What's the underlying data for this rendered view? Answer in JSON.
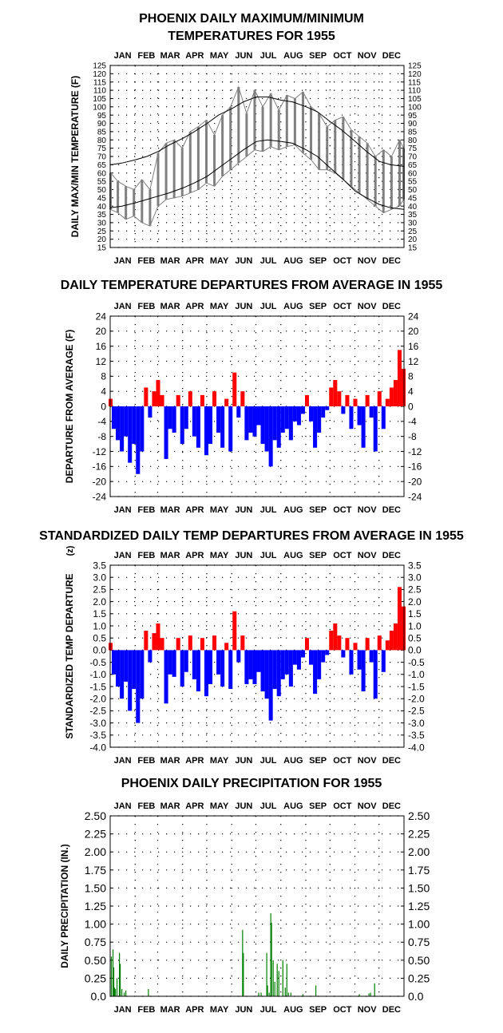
{
  "chart_data": [
    {
      "type": "line",
      "title_lines": [
        "PHOENIX DAILY MAXIMUM/MINIMUM",
        "TEMPERATURES FOR 1955"
      ],
      "ylabel": "DAILY MAX/MIN TEMPERATURE (F)",
      "xlabel": "",
      "months": [
        "JAN",
        "FEB",
        "MAR",
        "APR",
        "MAY",
        "JUN",
        "JUL",
        "AUG",
        "SEP",
        "OCT",
        "NOV",
        "DEC"
      ],
      "ylim": [
        15,
        125
      ],
      "yticks": [
        15,
        20,
        25,
        30,
        35,
        40,
        45,
        50,
        55,
        60,
        65,
        70,
        75,
        80,
        85,
        90,
        95,
        100,
        105,
        110,
        115,
        120,
        125
      ],
      "grid": true,
      "colors": {
        "observed_band": "#808080",
        "normal_lines": "#000000"
      },
      "series": [
        {
          "name": "",
          "role": "normal_max",
          "x": [
            1,
            15,
            32,
            46,
            60,
            74,
            91,
            105,
            121,
            135,
            152,
            166,
            182,
            196,
            213,
            227,
            244,
            258,
            274,
            288,
            305,
            319,
            335,
            349,
            365
          ],
          "values": [
            65,
            66,
            68,
            70,
            73,
            77,
            81,
            85,
            90,
            95,
            99,
            103,
            106,
            106,
            104,
            103,
            100,
            97,
            91,
            86,
            79,
            73,
            67,
            65,
            64
          ]
        },
        {
          "name": "",
          "role": "normal_min",
          "x": [
            1,
            15,
            32,
            46,
            60,
            74,
            91,
            105,
            121,
            135,
            152,
            166,
            182,
            196,
            213,
            227,
            244,
            258,
            274,
            288,
            305,
            319,
            335,
            349,
            365
          ],
          "values": [
            39,
            40,
            42,
            44,
            46,
            48,
            51,
            54,
            58,
            63,
            69,
            74,
            79,
            80,
            79,
            78,
            74,
            70,
            63,
            57,
            49,
            45,
            41,
            39,
            38
          ]
        },
        {
          "name": "",
          "role": "observed_max",
          "x": [
            1,
            10,
            20,
            30,
            40,
            50,
            60,
            70,
            80,
            90,
            100,
            110,
            120,
            130,
            140,
            150,
            160,
            170,
            180,
            190,
            200,
            210,
            220,
            230,
            240,
            250,
            260,
            270,
            280,
            290,
            300,
            310,
            320,
            330,
            340,
            350,
            360,
            365
          ],
          "values": [
            60,
            55,
            52,
            50,
            56,
            50,
            72,
            78,
            80,
            75,
            85,
            88,
            92,
            83,
            95,
            100,
            112,
            96,
            110,
            100,
            108,
            98,
            107,
            105,
            109,
            100,
            96,
            88,
            92,
            94,
            86,
            82,
            78,
            70,
            74,
            70,
            80,
            75
          ]
        },
        {
          "name": "",
          "role": "observed_min",
          "x": [
            1,
            10,
            20,
            30,
            40,
            50,
            60,
            70,
            80,
            90,
            100,
            110,
            120,
            130,
            140,
            150,
            160,
            170,
            180,
            190,
            200,
            210,
            220,
            230,
            240,
            250,
            260,
            270,
            280,
            290,
            300,
            310,
            320,
            330,
            340,
            350,
            360,
            365
          ],
          "values": [
            38,
            36,
            32,
            34,
            30,
            28,
            40,
            44,
            45,
            46,
            48,
            50,
            54,
            52,
            58,
            62,
            66,
            70,
            74,
            73,
            76,
            74,
            76,
            77,
            72,
            68,
            62,
            62,
            60,
            56,
            52,
            48,
            44,
            40,
            36,
            38,
            40,
            44
          ]
        }
      ]
    },
    {
      "type": "bar",
      "title": "DAILY TEMPERATURE DEPARTURES FROM AVERAGE IN 1955",
      "ylabel": "DEPARTURE FROM AVERAGE (F)",
      "xlabel": "",
      "months": [
        "JAN",
        "FEB",
        "MAR",
        "APR",
        "MAY",
        "JUN",
        "JUL",
        "AUG",
        "SEP",
        "OCT",
        "NOV",
        "DEC"
      ],
      "ylim": [
        -24,
        24
      ],
      "yticks": [
        -24,
        -20,
        -16,
        -12,
        -8,
        -4,
        0,
        4,
        8,
        12,
        16,
        20,
        24
      ],
      "grid": true,
      "colors": {
        "positive": "#ff0000",
        "negative": "#0000ff"
      },
      "x": [
        1,
        5,
        10,
        15,
        20,
        25,
        30,
        35,
        40,
        45,
        50,
        55,
        60,
        65,
        70,
        75,
        80,
        85,
        90,
        95,
        100,
        105,
        110,
        115,
        120,
        125,
        130,
        135,
        140,
        145,
        150,
        155,
        160,
        165,
        170,
        175,
        180,
        185,
        190,
        195,
        200,
        205,
        210,
        215,
        220,
        225,
        230,
        235,
        240,
        245,
        250,
        255,
        260,
        265,
        270,
        275,
        280,
        285,
        290,
        295,
        300,
        305,
        310,
        315,
        320,
        325,
        330,
        335,
        340,
        345,
        350,
        355,
        360,
        365
      ],
      "values": [
        2,
        -6,
        -9,
        -12,
        -8,
        -15,
        -10,
        -18,
        -12,
        5,
        -3,
        4,
        7,
        3,
        -14,
        -6,
        -7,
        3,
        -10,
        -6,
        4,
        -8,
        -11,
        3,
        -13,
        -10,
        4,
        -7,
        -11,
        2,
        -12,
        9,
        -3,
        4,
        -9,
        -7,
        -8,
        -5,
        -10,
        -12,
        -16,
        -9,
        -11,
        -7,
        -6,
        -9,
        -4,
        -5,
        -2,
        3,
        -4,
        -11,
        -7,
        -3,
        -1,
        5,
        7,
        4,
        -2,
        3,
        -6,
        2,
        -5,
        -11,
        3,
        -3,
        -12,
        4,
        -6,
        2,
        5,
        7,
        15,
        10
      ]
    },
    {
      "type": "bar",
      "title": "STANDARDIZED DAILY TEMP DEPARTURES FROM AVERAGE IN 1955",
      "ylabel": "STANDARDIZED TEMP DEPARTURE",
      "ylabel_unit": "(z)",
      "xlabel": "",
      "months": [
        "JAN",
        "FEB",
        "MAR",
        "APR",
        "MAY",
        "JUN",
        "JUL",
        "AUG",
        "SEP",
        "OCT",
        "NOV",
        "DEC"
      ],
      "ylim": [
        -4,
        3.5
      ],
      "yticks": [
        -4.0,
        -3.5,
        -3.0,
        -2.5,
        -2.0,
        -1.5,
        -1.0,
        -0.5,
        0.0,
        0.5,
        1.0,
        1.5,
        2.0,
        2.5,
        3.0,
        3.5
      ],
      "ytick_labels": [
        "-4.0",
        "-3.5",
        "-3.0",
        "-2.5",
        "-2.0",
        "-1.5",
        "-1.0",
        "-0.5",
        "0.0",
        "0.5",
        "1.0",
        "1.5",
        "2.0",
        "2.5",
        "3.0",
        "3.5"
      ],
      "grid": true,
      "colors": {
        "positive": "#ff0000",
        "negative": "#0000ff"
      },
      "x": [
        1,
        5,
        10,
        15,
        20,
        25,
        30,
        35,
        40,
        45,
        50,
        55,
        60,
        65,
        70,
        75,
        80,
        85,
        90,
        95,
        100,
        105,
        110,
        115,
        120,
        125,
        130,
        135,
        140,
        145,
        150,
        155,
        160,
        165,
        170,
        175,
        180,
        185,
        190,
        195,
        200,
        205,
        210,
        215,
        220,
        225,
        230,
        235,
        240,
        245,
        250,
        255,
        260,
        265,
        270,
        275,
        280,
        285,
        290,
        295,
        300,
        305,
        310,
        315,
        320,
        325,
        330,
        335,
        340,
        345,
        350,
        355,
        360,
        365
      ],
      "values": [
        0.3,
        -1.0,
        -1.5,
        -2.0,
        -1.3,
        -2.5,
        -1.6,
        -3.0,
        -2.0,
        0.8,
        -0.5,
        0.7,
        1.1,
        0.5,
        -2.2,
        -1.0,
        -1.1,
        0.5,
        -1.5,
        -0.9,
        0.6,
        -1.2,
        -1.7,
        0.5,
        -1.9,
        -1.4,
        0.6,
        -1.0,
        -1.5,
        0.3,
        -1.6,
        1.6,
        -0.5,
        0.6,
        -1.4,
        -1.2,
        -1.4,
        -0.9,
        -1.7,
        -2.0,
        -2.9,
        -1.6,
        -1.9,
        -1.2,
        -1.0,
        -1.5,
        -0.6,
        -0.8,
        -0.3,
        0.5,
        -0.6,
        -1.8,
        -1.2,
        -0.5,
        -0.2,
        0.8,
        1.1,
        0.6,
        -0.3,
        0.5,
        -1.0,
        0.3,
        -0.8,
        -1.7,
        0.5,
        -0.5,
        -2.0,
        0.6,
        -0.9,
        0.4,
        0.8,
        1.1,
        2.6,
        1.8
      ]
    },
    {
      "type": "bar",
      "title": "PHOENIX DAILY PRECIPITATION FOR 1955",
      "ylabel": "DAILY PRECIPITATION (IN.)",
      "xlabel": "",
      "months": [
        "JAN",
        "FEB",
        "MAR",
        "APR",
        "MAY",
        "JUN",
        "JUL",
        "AUG",
        "SEP",
        "OCT",
        "NOV",
        "DEC"
      ],
      "ylim": [
        0,
        2.5
      ],
      "yticks": [
        0,
        0.25,
        0.5,
        0.75,
        1.0,
        1.25,
        1.5,
        1.75,
        2.0,
        2.25,
        2.5
      ],
      "ytick_labels": [
        "0.0",
        "0.25",
        "0.50",
        "0.75",
        "1.00",
        "1.25",
        "1.50",
        "1.75",
        "2.00",
        "2.25",
        "2.50"
      ],
      "grid": true,
      "colors": {
        "bars": "#008000"
      },
      "x": [
        2,
        4,
        5,
        6,
        7,
        9,
        12,
        13,
        15,
        18,
        20,
        48,
        165,
        166,
        185,
        188,
        195,
        196,
        198,
        200,
        201,
        203,
        205,
        208,
        210,
        215,
        218,
        220,
        222,
        225,
        240,
        256,
        310,
        322,
        324,
        329
      ],
      "values": [
        0.55,
        0.65,
        0.4,
        0.12,
        0.1,
        0.25,
        0.6,
        0.45,
        0.1,
        0.05,
        0.08,
        0.1,
        0.92,
        0.6,
        0.05,
        0.05,
        0.6,
        0.15,
        0.05,
        1.15,
        1.02,
        0.5,
        0.2,
        0.45,
        0.35,
        0.5,
        0.12,
        0.45,
        0.05,
        0.05,
        0.03,
        0.15,
        0.03,
        0.04,
        0.05,
        0.18
      ]
    }
  ]
}
